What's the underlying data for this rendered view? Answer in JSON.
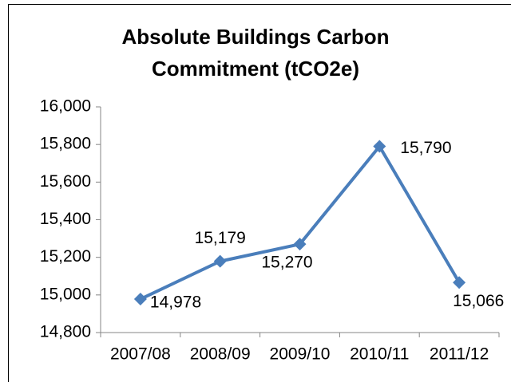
{
  "chart_data": {
    "type": "line",
    "title": "Absolute Buildings Carbon Commitment (tCO2e)",
    "categories": [
      "2007/08",
      "2008/09",
      "2009/10",
      "2010/11",
      "2011/12"
    ],
    "series": [
      {
        "name": "Absolute Buildings Carbon Commitment",
        "color": "#4a7ebb",
        "values": [
          14978,
          15179,
          15270,
          15790,
          15066
        ],
        "value_labels": [
          "14,978",
          "15,179",
          "15,270",
          "15,790",
          "15,066"
        ]
      }
    ],
    "ylim": [
      14800,
      16000
    ],
    "yticks": [
      {
        "value": 14800,
        "label": "14,800"
      },
      {
        "value": 15000,
        "label": "15,000"
      },
      {
        "value": 15200,
        "label": "15,200"
      },
      {
        "value": 15400,
        "label": "15,400"
      },
      {
        "value": 15600,
        "label": "15,600"
      },
      {
        "value": 15800,
        "label": "15,800"
      },
      {
        "value": 16000,
        "label": "16,000"
      }
    ],
    "grid": false
  }
}
